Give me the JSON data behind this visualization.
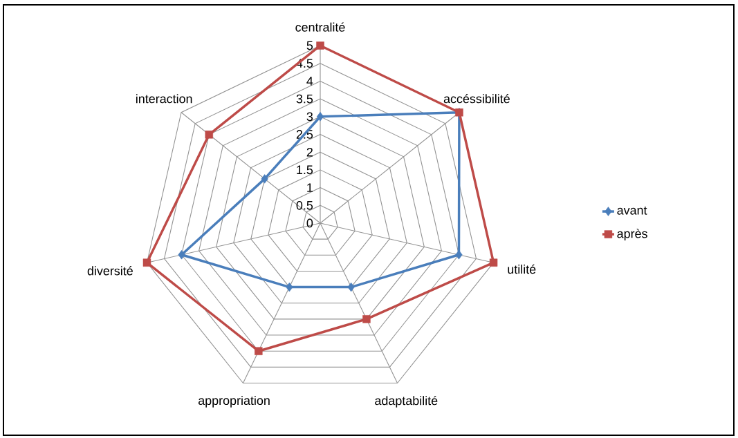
{
  "chart_data": {
    "type": "radar",
    "categories": [
      "centralité",
      "accéssibilité",
      "utilité",
      "adaptabilité",
      "appropriation",
      "diversité",
      "interaction"
    ],
    "series": [
      {
        "name": "avant",
        "color": "#4a7ebb",
        "marker": "diamond",
        "values": [
          3,
          5,
          4,
          2,
          2,
          4,
          2
        ]
      },
      {
        "name": "après",
        "color": "#be4b48",
        "marker": "square",
        "values": [
          5,
          5,
          5,
          3,
          4,
          5,
          4
        ]
      }
    ],
    "ylim": [
      0,
      5
    ],
    "yticks": [
      0,
      0.5,
      1,
      1.5,
      2,
      2.5,
      3,
      3.5,
      4,
      4.5,
      5
    ],
    "grid": true,
    "legend": "right"
  }
}
